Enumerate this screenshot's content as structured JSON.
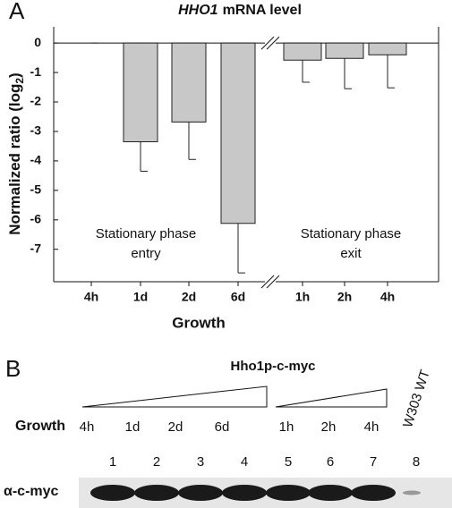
{
  "chart_data": {
    "type": "bar",
    "panel_label": "A",
    "title_gene": "HHO1",
    "title": "mRNA level",
    "ylabel": "Normalized ratio (log",
    "ylabel_sub": "2",
    "ylabel_end": ")",
    "xlabel": "Growth",
    "categories": [
      "4h",
      "1d",
      "2d",
      "6d",
      "1h",
      "2h",
      "4h"
    ],
    "values": [
      0,
      -3.35,
      -2.68,
      -6.12,
      -0.58,
      -0.52,
      -0.4
    ],
    "errors": [
      0,
      1.0,
      1.27,
      1.68,
      0.75,
      1.03,
      1.12
    ],
    "color": "#c8c8c8",
    "ylim": [
      -8.1,
      0.55
    ],
    "yticks": [
      0,
      -1,
      -2,
      -3,
      -4,
      -5,
      -6,
      -7
    ],
    "axis_break_after": 3,
    "grid": false,
    "annotations": [
      [
        "Stationary phase",
        "entry"
      ],
      [
        "Stationary phase",
        "exit"
      ]
    ]
  },
  "blot": {
    "panel_label": "B",
    "title": "Hho1p-c-myc",
    "row_label": "Growth",
    "timepoints": [
      "4h",
      "1d",
      "2d",
      "6d",
      "1h",
      "2h",
      "4h"
    ],
    "lanes": [
      "1",
      "2",
      "3",
      "4",
      "5",
      "6",
      "7",
      "8"
    ],
    "control": "W303 WT",
    "antibody": "α-c-myc"
  }
}
